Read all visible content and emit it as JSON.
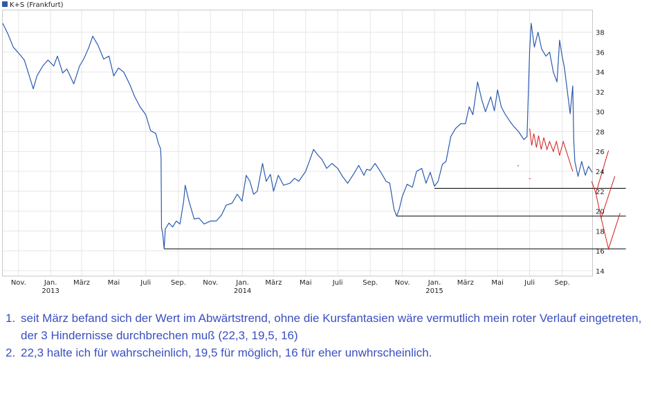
{
  "chart_data": {
    "type": "line",
    "legend": "K+S (Frankfurt)",
    "line_color": "#2a5ab0",
    "annotation_color": "#d21a1a",
    "support_color": "#000000",
    "ylim": [
      13.5,
      40.2
    ],
    "yticks": [
      14,
      16,
      18,
      20,
      22,
      24,
      26,
      28,
      30,
      32,
      34,
      36,
      38
    ],
    "x_start": "2012-10-02",
    "x_end": "2015-10-28",
    "xticks": [
      {
        "date": "2012-11-01",
        "label": "Nov.",
        "year": ""
      },
      {
        "date": "2013-01-01",
        "label": "Jan.",
        "year": "2013"
      },
      {
        "date": "2013-03-01",
        "label": "März",
        "year": ""
      },
      {
        "date": "2013-05-01",
        "label": "Mai",
        "year": ""
      },
      {
        "date": "2013-07-01",
        "label": "Juli",
        "year": ""
      },
      {
        "date": "2013-09-01",
        "label": "Sep.",
        "year": ""
      },
      {
        "date": "2013-11-01",
        "label": "Nov.",
        "year": ""
      },
      {
        "date": "2014-01-01",
        "label": "Jan.",
        "year": "2014"
      },
      {
        "date": "2014-03-01",
        "label": "März",
        "year": ""
      },
      {
        "date": "2014-05-01",
        "label": "Mai",
        "year": ""
      },
      {
        "date": "2014-07-01",
        "label": "Juli",
        "year": ""
      },
      {
        "date": "2014-09-01",
        "label": "Sep.",
        "year": ""
      },
      {
        "date": "2014-11-01",
        "label": "Nov.",
        "year": ""
      },
      {
        "date": "2015-01-01",
        "label": "Jan.",
        "year": "2015"
      },
      {
        "date": "2015-03-01",
        "label": "März",
        "year": ""
      },
      {
        "date": "2015-05-01",
        "label": "Mai",
        "year": ""
      },
      {
        "date": "2015-07-01",
        "label": "Juli",
        "year": ""
      },
      {
        "date": "2015-09-01",
        "label": "Sep.",
        "year": ""
      }
    ],
    "series": [
      {
        "name": "K+S (Frankfurt)",
        "points": [
          [
            "2012-10-02",
            38.9
          ],
          [
            "2012-10-12",
            37.8
          ],
          [
            "2012-10-22",
            36.5
          ],
          [
            "2012-11-01",
            35.9
          ],
          [
            "2012-11-12",
            35.2
          ],
          [
            "2012-11-22",
            33.5
          ],
          [
            "2012-11-29",
            32.3
          ],
          [
            "2012-12-06",
            33.6
          ],
          [
            "2012-12-17",
            34.6
          ],
          [
            "2012-12-27",
            35.2
          ],
          [
            "2013-01-07",
            34.6
          ],
          [
            "2013-01-14",
            35.6
          ],
          [
            "2013-01-24",
            33.9
          ],
          [
            "2013-02-01",
            34.3
          ],
          [
            "2013-02-14",
            32.8
          ],
          [
            "2013-02-25",
            34.6
          ],
          [
            "2013-03-05",
            35.3
          ],
          [
            "2013-03-15",
            36.5
          ],
          [
            "2013-03-22",
            37.6
          ],
          [
            "2013-04-01",
            36.7
          ],
          [
            "2013-04-12",
            35.3
          ],
          [
            "2013-04-22",
            35.6
          ],
          [
            "2013-05-01",
            33.6
          ],
          [
            "2013-05-10",
            34.4
          ],
          [
            "2013-05-20",
            34.0
          ],
          [
            "2013-06-01",
            32.7
          ],
          [
            "2013-06-10",
            31.5
          ],
          [
            "2013-06-20",
            30.5
          ],
          [
            "2013-07-01",
            29.7
          ],
          [
            "2013-07-10",
            28.1
          ],
          [
            "2013-07-20",
            27.8
          ],
          [
            "2013-07-25",
            26.8
          ],
          [
            "2013-07-29",
            26.3
          ],
          [
            "2013-07-30",
            25.4
          ],
          [
            "2013-07-31",
            18.3
          ],
          [
            "2013-08-02",
            17.8
          ],
          [
            "2013-08-05",
            16.2
          ],
          [
            "2013-08-07",
            18.2
          ],
          [
            "2013-08-14",
            18.8
          ],
          [
            "2013-08-21",
            18.4
          ],
          [
            "2013-08-28",
            19.0
          ],
          [
            "2013-09-04",
            18.7
          ],
          [
            "2013-09-11",
            21.0
          ],
          [
            "2013-09-14",
            22.6
          ],
          [
            "2013-09-21",
            21.0
          ],
          [
            "2013-10-01",
            19.2
          ],
          [
            "2013-10-10",
            19.3
          ],
          [
            "2013-10-20",
            18.7
          ],
          [
            "2013-11-01",
            19.0
          ],
          [
            "2013-11-12",
            19.0
          ],
          [
            "2013-11-22",
            19.6
          ],
          [
            "2013-12-01",
            20.6
          ],
          [
            "2013-12-12",
            20.8
          ],
          [
            "2013-12-22",
            21.7
          ],
          [
            "2013-12-31",
            21.0
          ],
          [
            "2014-01-08",
            23.6
          ],
          [
            "2014-01-15",
            23.0
          ],
          [
            "2014-01-22",
            21.7
          ],
          [
            "2014-01-29",
            22.0
          ],
          [
            "2014-02-08",
            24.8
          ],
          [
            "2014-02-15",
            23.0
          ],
          [
            "2014-02-23",
            23.7
          ],
          [
            "2014-03-01",
            22.0
          ],
          [
            "2014-03-10",
            23.6
          ],
          [
            "2014-03-20",
            22.6
          ],
          [
            "2014-04-01",
            22.8
          ],
          [
            "2014-04-10",
            23.3
          ],
          [
            "2014-04-18",
            23.0
          ],
          [
            "2014-05-01",
            24.0
          ],
          [
            "2014-05-08",
            25.0
          ],
          [
            "2014-05-16",
            26.2
          ],
          [
            "2014-05-25",
            25.6
          ],
          [
            "2014-06-01",
            25.2
          ],
          [
            "2014-06-10",
            24.3
          ],
          [
            "2014-06-20",
            24.8
          ],
          [
            "2014-07-01",
            24.3
          ],
          [
            "2014-07-10",
            23.5
          ],
          [
            "2014-07-20",
            22.8
          ],
          [
            "2014-08-01",
            23.8
          ],
          [
            "2014-08-10",
            24.6
          ],
          [
            "2014-08-20",
            23.6
          ],
          [
            "2014-08-25",
            24.2
          ],
          [
            "2014-09-01",
            24.1
          ],
          [
            "2014-09-10",
            24.8
          ],
          [
            "2014-09-20",
            24.0
          ],
          [
            "2014-10-01",
            23.0
          ],
          [
            "2014-10-08",
            22.8
          ],
          [
            "2014-10-16",
            20.2
          ],
          [
            "2014-10-21",
            19.5
          ],
          [
            "2014-10-26",
            20.2
          ],
          [
            "2014-11-01",
            21.5
          ],
          [
            "2014-11-10",
            22.7
          ],
          [
            "2014-11-20",
            22.4
          ],
          [
            "2014-11-28",
            24.0
          ],
          [
            "2014-12-08",
            24.3
          ],
          [
            "2014-12-16",
            22.8
          ],
          [
            "2014-12-24",
            23.9
          ],
          [
            "2015-01-01",
            22.5
          ],
          [
            "2015-01-08",
            23.0
          ],
          [
            "2015-01-16",
            24.7
          ],
          [
            "2015-01-23",
            25.0
          ],
          [
            "2015-02-01",
            27.5
          ],
          [
            "2015-02-10",
            28.3
          ],
          [
            "2015-02-20",
            28.8
          ],
          [
            "2015-03-01",
            28.8
          ],
          [
            "2015-03-08",
            30.5
          ],
          [
            "2015-03-15",
            29.7
          ],
          [
            "2015-03-24",
            33.0
          ],
          [
            "2015-04-01",
            31.2
          ],
          [
            "2015-04-08",
            30.0
          ],
          [
            "2015-04-18",
            31.5
          ],
          [
            "2015-04-25",
            30.1
          ],
          [
            "2015-05-01",
            32.2
          ],
          [
            "2015-05-08",
            30.5
          ],
          [
            "2015-05-15",
            29.8
          ],
          [
            "2015-05-25",
            29.0
          ],
          [
            "2015-06-01",
            28.5
          ],
          [
            "2015-06-10",
            28.0
          ],
          [
            "2015-06-20",
            27.2
          ],
          [
            "2015-06-26",
            27.5
          ],
          [
            "2015-07-01",
            36.2
          ],
          [
            "2015-07-04",
            38.9
          ],
          [
            "2015-07-10",
            36.5
          ],
          [
            "2015-07-17",
            38.0
          ],
          [
            "2015-07-24",
            36.3
          ],
          [
            "2015-08-01",
            35.6
          ],
          [
            "2015-08-08",
            36.0
          ],
          [
            "2015-08-15",
            34.0
          ],
          [
            "2015-08-22",
            33.0
          ],
          [
            "2015-08-27",
            37.2
          ],
          [
            "2015-09-01",
            35.5
          ],
          [
            "2015-09-05",
            34.5
          ],
          [
            "2015-09-10",
            32.4
          ],
          [
            "2015-09-16",
            29.8
          ],
          [
            "2015-09-21",
            32.6
          ],
          [
            "2015-09-23",
            27.0
          ],
          [
            "2015-09-25",
            25.0
          ],
          [
            "2015-10-01",
            23.5
          ],
          [
            "2015-10-08",
            25.0
          ],
          [
            "2015-10-15",
            23.6
          ],
          [
            "2015-10-21",
            24.5
          ],
          [
            "2015-10-28",
            23.9
          ]
        ]
      }
    ],
    "support_lines": [
      {
        "value": 16.2,
        "from": "2013-08-05",
        "to": "2015-12-31"
      },
      {
        "value": 19.5,
        "from": "2014-10-21",
        "to": "2015-12-31"
      },
      {
        "value": 22.3,
        "from": "2015-01-01",
        "to": "2015-12-31"
      }
    ],
    "red_zigzag": [
      [
        "2015-07-01",
        28.3
      ],
      [
        "2015-07-05",
        26.6
      ],
      [
        "2015-07-09",
        27.8
      ],
      [
        "2015-07-14",
        26.4
      ],
      [
        "2015-07-18",
        27.6
      ],
      [
        "2015-07-23",
        26.2
      ],
      [
        "2015-07-28",
        27.4
      ],
      [
        "2015-08-03",
        26.2
      ],
      [
        "2015-08-08",
        27.0
      ],
      [
        "2015-08-15",
        26.0
      ],
      [
        "2015-08-21",
        27.0
      ],
      [
        "2015-08-27",
        25.6
      ],
      [
        "2015-09-03",
        27.0
      ],
      [
        "2015-09-21",
        24.0
      ]
    ],
    "red_projection": [
      [
        "2015-10-27",
        23.0
      ],
      [
        "2015-11-04",
        21.8
      ],
      [
        "2015-11-28",
        26.1
      ]
    ],
    "red_projection_2": [
      [
        "2015-11-04",
        21.8
      ],
      [
        "2015-11-14",
        19.3
      ],
      [
        "2015-12-10",
        23.5
      ]
    ],
    "red_projection_3": [
      [
        "2015-11-14",
        19.3
      ],
      [
        "2015-11-28",
        16.2
      ],
      [
        "2015-12-20",
        19.8
      ]
    ],
    "red_dots": [
      [
        "2015-06-08",
        24.6
      ],
      [
        "2015-06-30",
        23.3
      ]
    ]
  },
  "notes": [
    {
      "num": "1.",
      "text": "seit März befand sich der Wert im Abwärtstrend, ohne die Kursfantasien wäre vermutlich mein roter Verlauf eingetreten, der 3 Hindernisse durchbrechen muß (22,3, 19,5, 16)"
    },
    {
      "num": "2.",
      "text": "22,3 halte ich für wahrscheinlich, 19,5 für möglich, 16 für eher unwhrscheinlich."
    }
  ]
}
